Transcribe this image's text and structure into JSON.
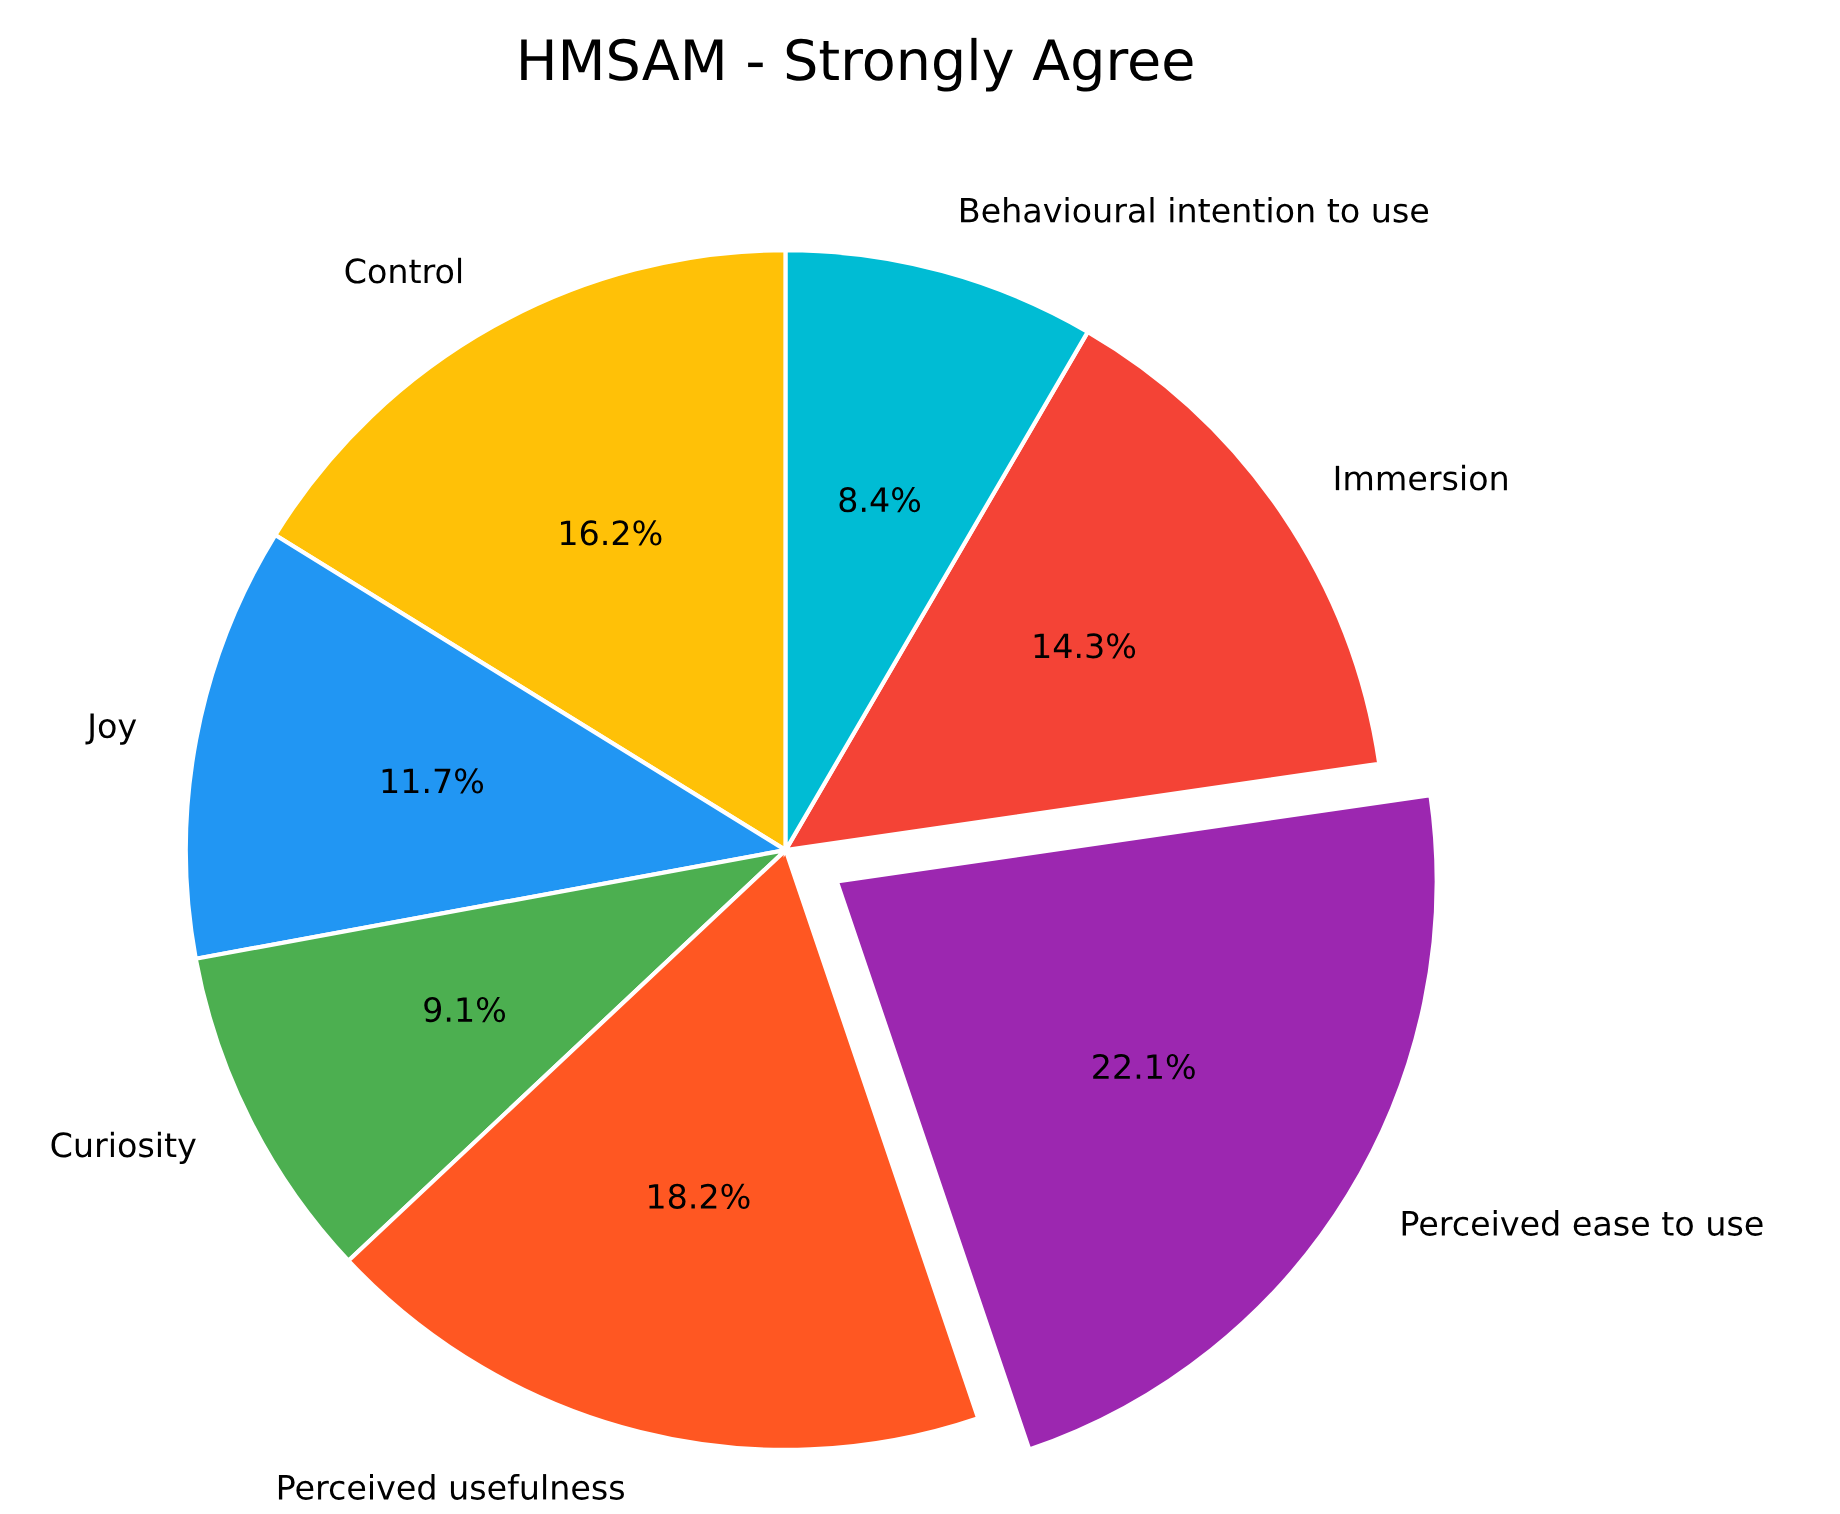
{
  "chart_data": {
    "type": "pie",
    "title": "HMSAM - Strongly Agree",
    "categories": [
      "Control",
      "Joy",
      "Curiosity",
      "Perceived usefulness",
      "Perceived ease to use",
      "Immersion",
      "Behavioural intention to use"
    ],
    "values": [
      16.2,
      11.7,
      9.1,
      18.2,
      22.1,
      14.3,
      8.4
    ],
    "colors": [
      "#ffc107",
      "#2196f3",
      "#4caf50",
      "#ff5722",
      "#9c27b0",
      "#f44336",
      "#00bcd4"
    ],
    "value_labels": [
      "16.2%",
      "11.7%",
      "9.1%",
      "18.2%",
      "22.1%",
      "14.3%",
      "8.4%"
    ]
  }
}
